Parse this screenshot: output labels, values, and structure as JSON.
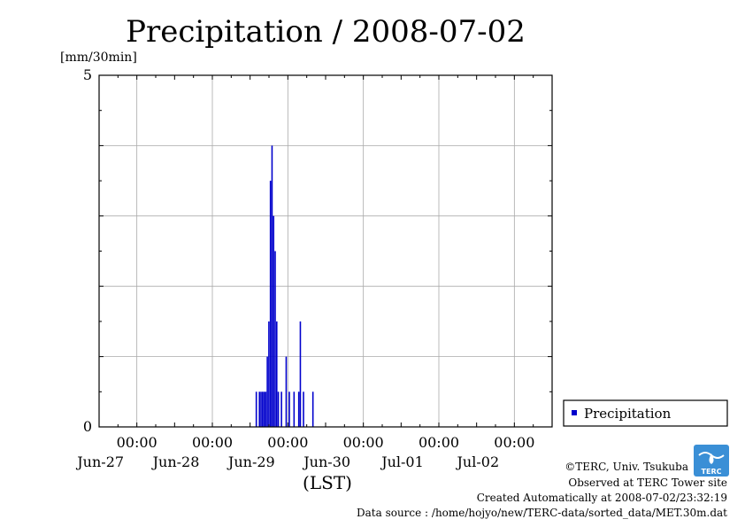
{
  "chart_data": {
    "type": "bar",
    "title": "Precipitation / 2008-07-02",
    "ylabel": "[mm/30min]",
    "xlabel": "(LST)",
    "ylim": [
      0,
      5
    ],
    "ytick_labels": [
      "0",
      "5"
    ],
    "xlim": [
      "2008-06-27 00:00",
      "2008-07-03 00:00"
    ],
    "x_ticks": [
      {
        "time": "2008-06-27 12:00",
        "label": "00:00",
        "date": "Jun-27"
      },
      {
        "time": "2008-06-28 12:00",
        "label": "00:00",
        "date": "Jun-28"
      },
      {
        "time": "2008-06-29 12:00",
        "label": "00:00",
        "date": "Jun-29"
      },
      {
        "time": "2008-06-30 12:00",
        "label": "00:00",
        "date": "Jun-30"
      },
      {
        "time": "2008-07-01 12:00",
        "label": "00:00",
        "date": "Jul-01"
      },
      {
        "time": "2008-07-02 12:00",
        "label": "00:00",
        "date": "Jul-02"
      }
    ],
    "grid": true,
    "legend_position": "outside-right-bottom",
    "series": [
      {
        "name": "Precipitation",
        "color": "#0000cc",
        "points": [
          [
            "2008-06-29 02:00",
            0.5
          ],
          [
            "2008-06-29 03:00",
            0.5
          ],
          [
            "2008-06-29 03:30",
            0.5
          ],
          [
            "2008-06-29 04:00",
            0.5
          ],
          [
            "2008-06-29 04:30",
            0.5
          ],
          [
            "2008-06-29 05:00",
            0.5
          ],
          [
            "2008-06-29 05:30",
            1.0
          ],
          [
            "2008-06-29 06:00",
            1.5
          ],
          [
            "2008-06-29 06:30",
            3.5
          ],
          [
            "2008-06-29 07:00",
            4.0
          ],
          [
            "2008-06-29 07:30",
            3.0
          ],
          [
            "2008-06-29 08:00",
            2.5
          ],
          [
            "2008-06-29 08:30",
            1.5
          ],
          [
            "2008-06-29 09:00",
            0.5
          ],
          [
            "2008-06-29 10:00",
            0.5
          ],
          [
            "2008-06-29 11:30",
            1.0
          ],
          [
            "2008-06-29 12:30",
            0.5
          ],
          [
            "2008-06-29 14:00",
            0.5
          ],
          [
            "2008-06-29 15:30",
            0.5
          ],
          [
            "2008-06-29 16:00",
            1.5
          ],
          [
            "2008-06-29 17:00",
            0.5
          ],
          [
            "2008-06-29 20:00",
            0.5
          ]
        ]
      }
    ]
  },
  "credits": {
    "copyright": "©TERC, Univ. Tsukuba",
    "observed": "Observed at TERC Tower site",
    "created": "Created Automatically at 2008-07-02/23:32:19",
    "source": "Data source : /home/hojyo/new/TERC-data/sorted_data/MET.30m.dat"
  },
  "logo": {
    "text": "TERC",
    "color": "#3a8fd6"
  }
}
